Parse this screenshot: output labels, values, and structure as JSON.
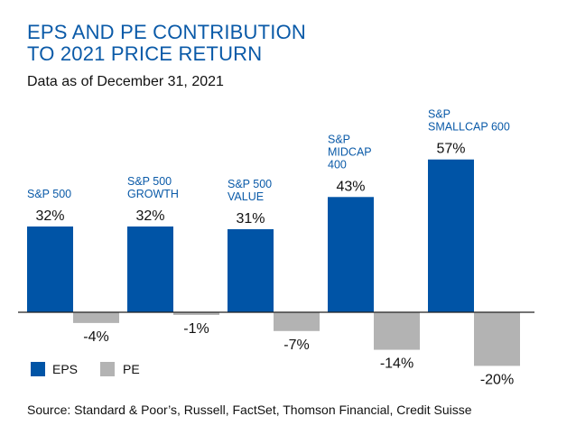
{
  "chart_data": {
    "type": "bar",
    "title": [
      "EPS AND PE CONTRIBUTION",
      "TO 2021 PRICE RETURN"
    ],
    "subtitle": "Data as of December 31, 2021",
    "categories": [
      [
        "S&P 500"
      ],
      [
        "S&P 500",
        "GROWTH"
      ],
      [
        "S&P 500",
        "VALUE"
      ],
      [
        "S&P",
        "MIDCAP",
        "400"
      ],
      [
        "S&P",
        "SMALLCAP 600"
      ]
    ],
    "series": [
      {
        "name": "EPS",
        "color": "#0054a6",
        "values": [
          32,
          32,
          31,
          43,
          57
        ],
        "labels": [
          "32%",
          "32%",
          "31%",
          "43%",
          "57%"
        ]
      },
      {
        "name": "PE",
        "color": "#b3b3b3",
        "values": [
          -4,
          -1,
          -7,
          -14,
          -20
        ],
        "labels": [
          "-4%",
          "-1%",
          "-7%",
          "-14%",
          "-20%"
        ]
      }
    ],
    "ylim": [
      -20,
      57
    ],
    "grid": false,
    "legend": "bottom-left",
    "source": "Source: Standard & Poor’s, Russell, FactSet, Thomson Financial, Credit Suisse"
  }
}
